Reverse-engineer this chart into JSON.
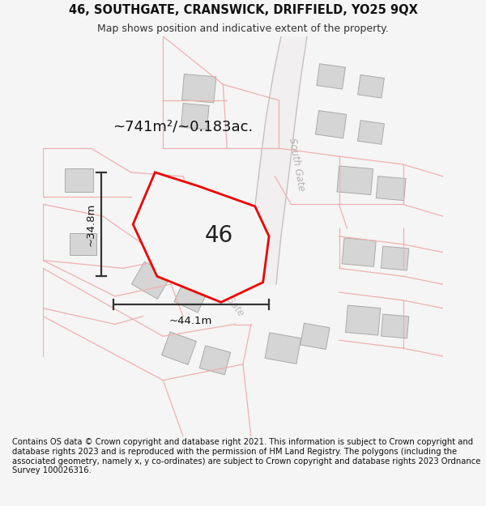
{
  "title": "46, SOUTHGATE, CRANSWICK, DRIFFIELD, YO25 9QX",
  "subtitle": "Map shows position and indicative extent of the property.",
  "footer": "Contains OS data © Crown copyright and database right 2021. This information is subject to Crown copyright and database rights 2023 and is reproduced with the permission of HM Land Registry. The polygons (including the associated geometry, namely x, y co-ordinates) are subject to Crown copyright and database rights 2023 Ordnance Survey 100026316.",
  "background_color": "#f5f5f5",
  "area_label": "~741m²/~0.183ac.",
  "number_label": "46",
  "dim_width": "~44.1m",
  "dim_height": "~34.8m",
  "road_label": "South Gate",
  "title_fontsize": 10.5,
  "subtitle_fontsize": 9,
  "footer_fontsize": 7.2,
  "building_color": "#d8d8d8",
  "building_edge": "#aaaaaa",
  "road_outline_color": "#f0b0b0",
  "road_fill_color": "#f8f0f0",
  "map_bg": "#ffffff",
  "main_poly_color": "#f0f0f0",
  "main_poly_edge": "#ee0000",
  "dim_color": "#333333"
}
